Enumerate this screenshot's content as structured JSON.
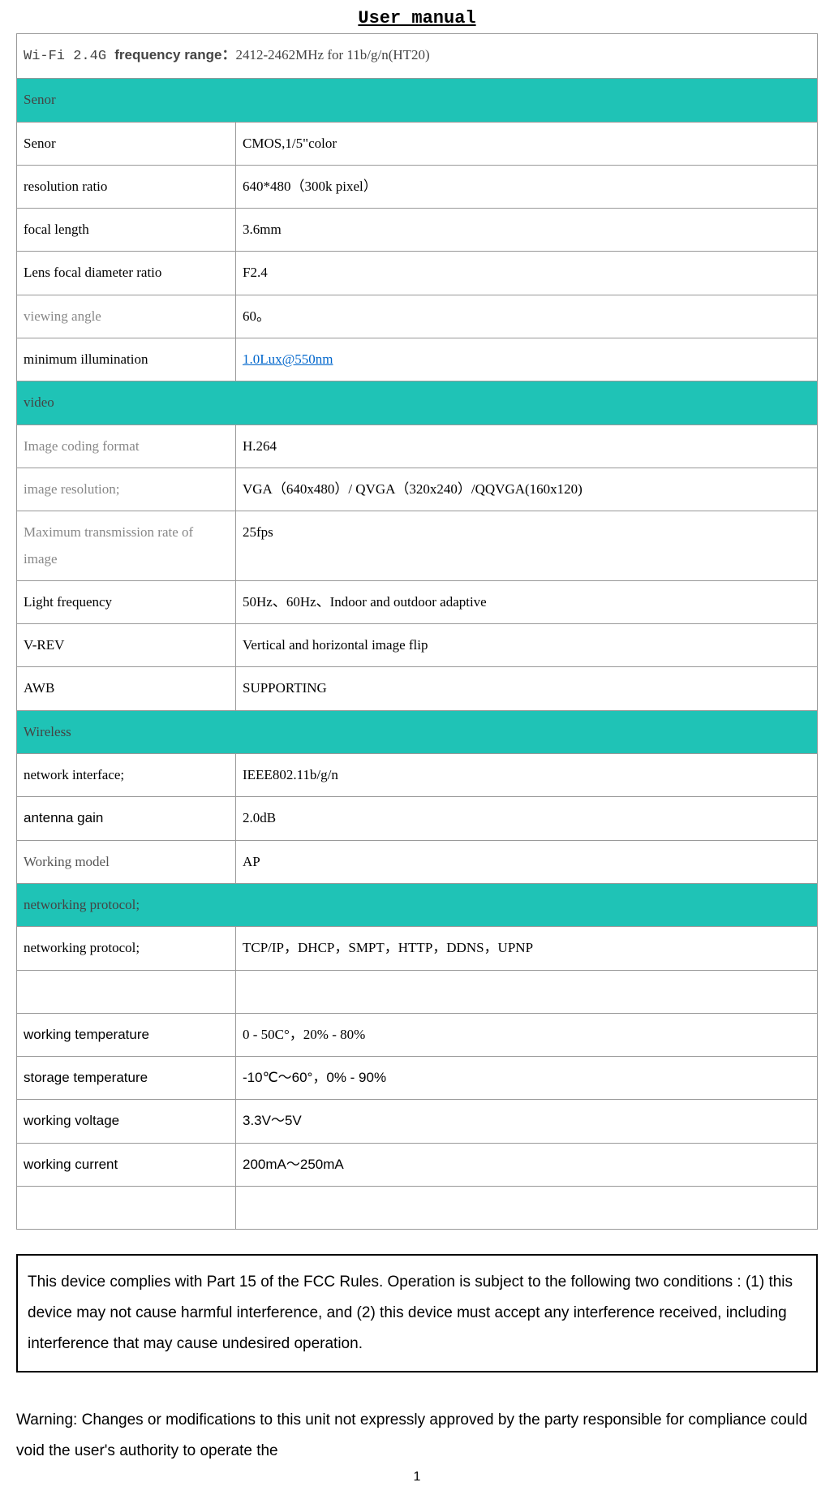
{
  "title": "User manual",
  "header_row": {
    "prefix": "Wi-Fi 2.4G ",
    "bold_part": "frequency range：",
    "suffix": "2412-2462MHz for 11b/g/n(HT20)"
  },
  "sections": {
    "sensor": {
      "heading": "Senor",
      "rows": [
        {
          "label": "Senor",
          "value": "CMOS,1/5\"color",
          "label_class": ""
        },
        {
          "label": "resolution ratio",
          "value": "640*480（300k pixel）",
          "label_class": ""
        },
        {
          "label": "focal length",
          "value": "3.6mm",
          "label_class": ""
        },
        {
          "label": "Lens focal diameter ratio",
          "value": "F2.4",
          "label_class": ""
        },
        {
          "label": "viewing angle",
          "value": "60。",
          "label_class": "faded"
        },
        {
          "label": "minimum illumination",
          "value": "1.0Lux@550nm",
          "label_class": "",
          "value_class": "linklike"
        }
      ]
    },
    "video": {
      "heading": "video",
      "rows": [
        {
          "label": "Image coding format",
          "value": "H.264",
          "label_class": "faded"
        },
        {
          "label": "image resolution;",
          "value": "VGA（640x480）/ QVGA（320x240）/QQVGA(160x120)",
          "label_class": "faded"
        },
        {
          "label": "Maximum transmission rate of image",
          "value": "25fps",
          "label_class": "faded"
        },
        {
          "label": "Light frequency",
          "value": "50Hz、60Hz、Indoor and outdoor adaptive",
          "label_class": ""
        },
        {
          "label": "V-REV",
          "value": "Vertical and horizontal image flip",
          "label_class": ""
        },
        {
          "label": "AWB",
          "value": "SUPPORTING",
          "label_class": ""
        }
      ]
    },
    "wireless": {
      "heading": "Wireless",
      "rows": [
        {
          "label": "network interface;",
          "value": "IEEE802.11b/g/n",
          "label_class": ""
        },
        {
          "label": "antenna gain",
          "value": "2.0dB",
          "label_class": "arial"
        },
        {
          "label": "Working model",
          "value": "AP",
          "label_class": "medfaded"
        }
      ]
    },
    "protocol": {
      "heading": "networking protocol;",
      "rows": [
        {
          "label": "networking protocol;",
          "value": "TCP/IP，DHCP，SMPT，HTTP，DDNS，UPNP",
          "label_class": ""
        },
        {
          "label": "",
          "value": "",
          "label_class": ""
        },
        {
          "label": "working temperature",
          "value": "0 - 50C°，20% - 80%",
          "label_class": "arial"
        },
        {
          "label": "storage temperature",
          "value": "-10℃～60°，0% - 90%",
          "label_class": "arial",
          "value_class": "arial"
        },
        {
          "label": "working voltage",
          "value": "3.3V～5V",
          "label_class": "arial",
          "value_class": "arial"
        },
        {
          "label": "working current",
          "value": "200mA～250mA",
          "label_class": "arial",
          "value_class": "arial"
        },
        {
          "label": "",
          "value": "",
          "label_class": ""
        }
      ]
    }
  },
  "fcc_text": "This device complies with Part 15 of the FCC Rules. Operation is subject to the following two conditions : (1) this device may not cause harmful interference, and (2) this device must accept any interference received, including interference that may cause undesired operation.",
  "warning_text": "Warning: Changes or modifications to this unit not expressly approved by the party responsible for compliance could void the user's authority to operate the",
  "page_number": "1",
  "colors": {
    "section_bg": "#1fc3b6",
    "border": "#999999",
    "link": "#0066cc",
    "faded": "#888888"
  }
}
